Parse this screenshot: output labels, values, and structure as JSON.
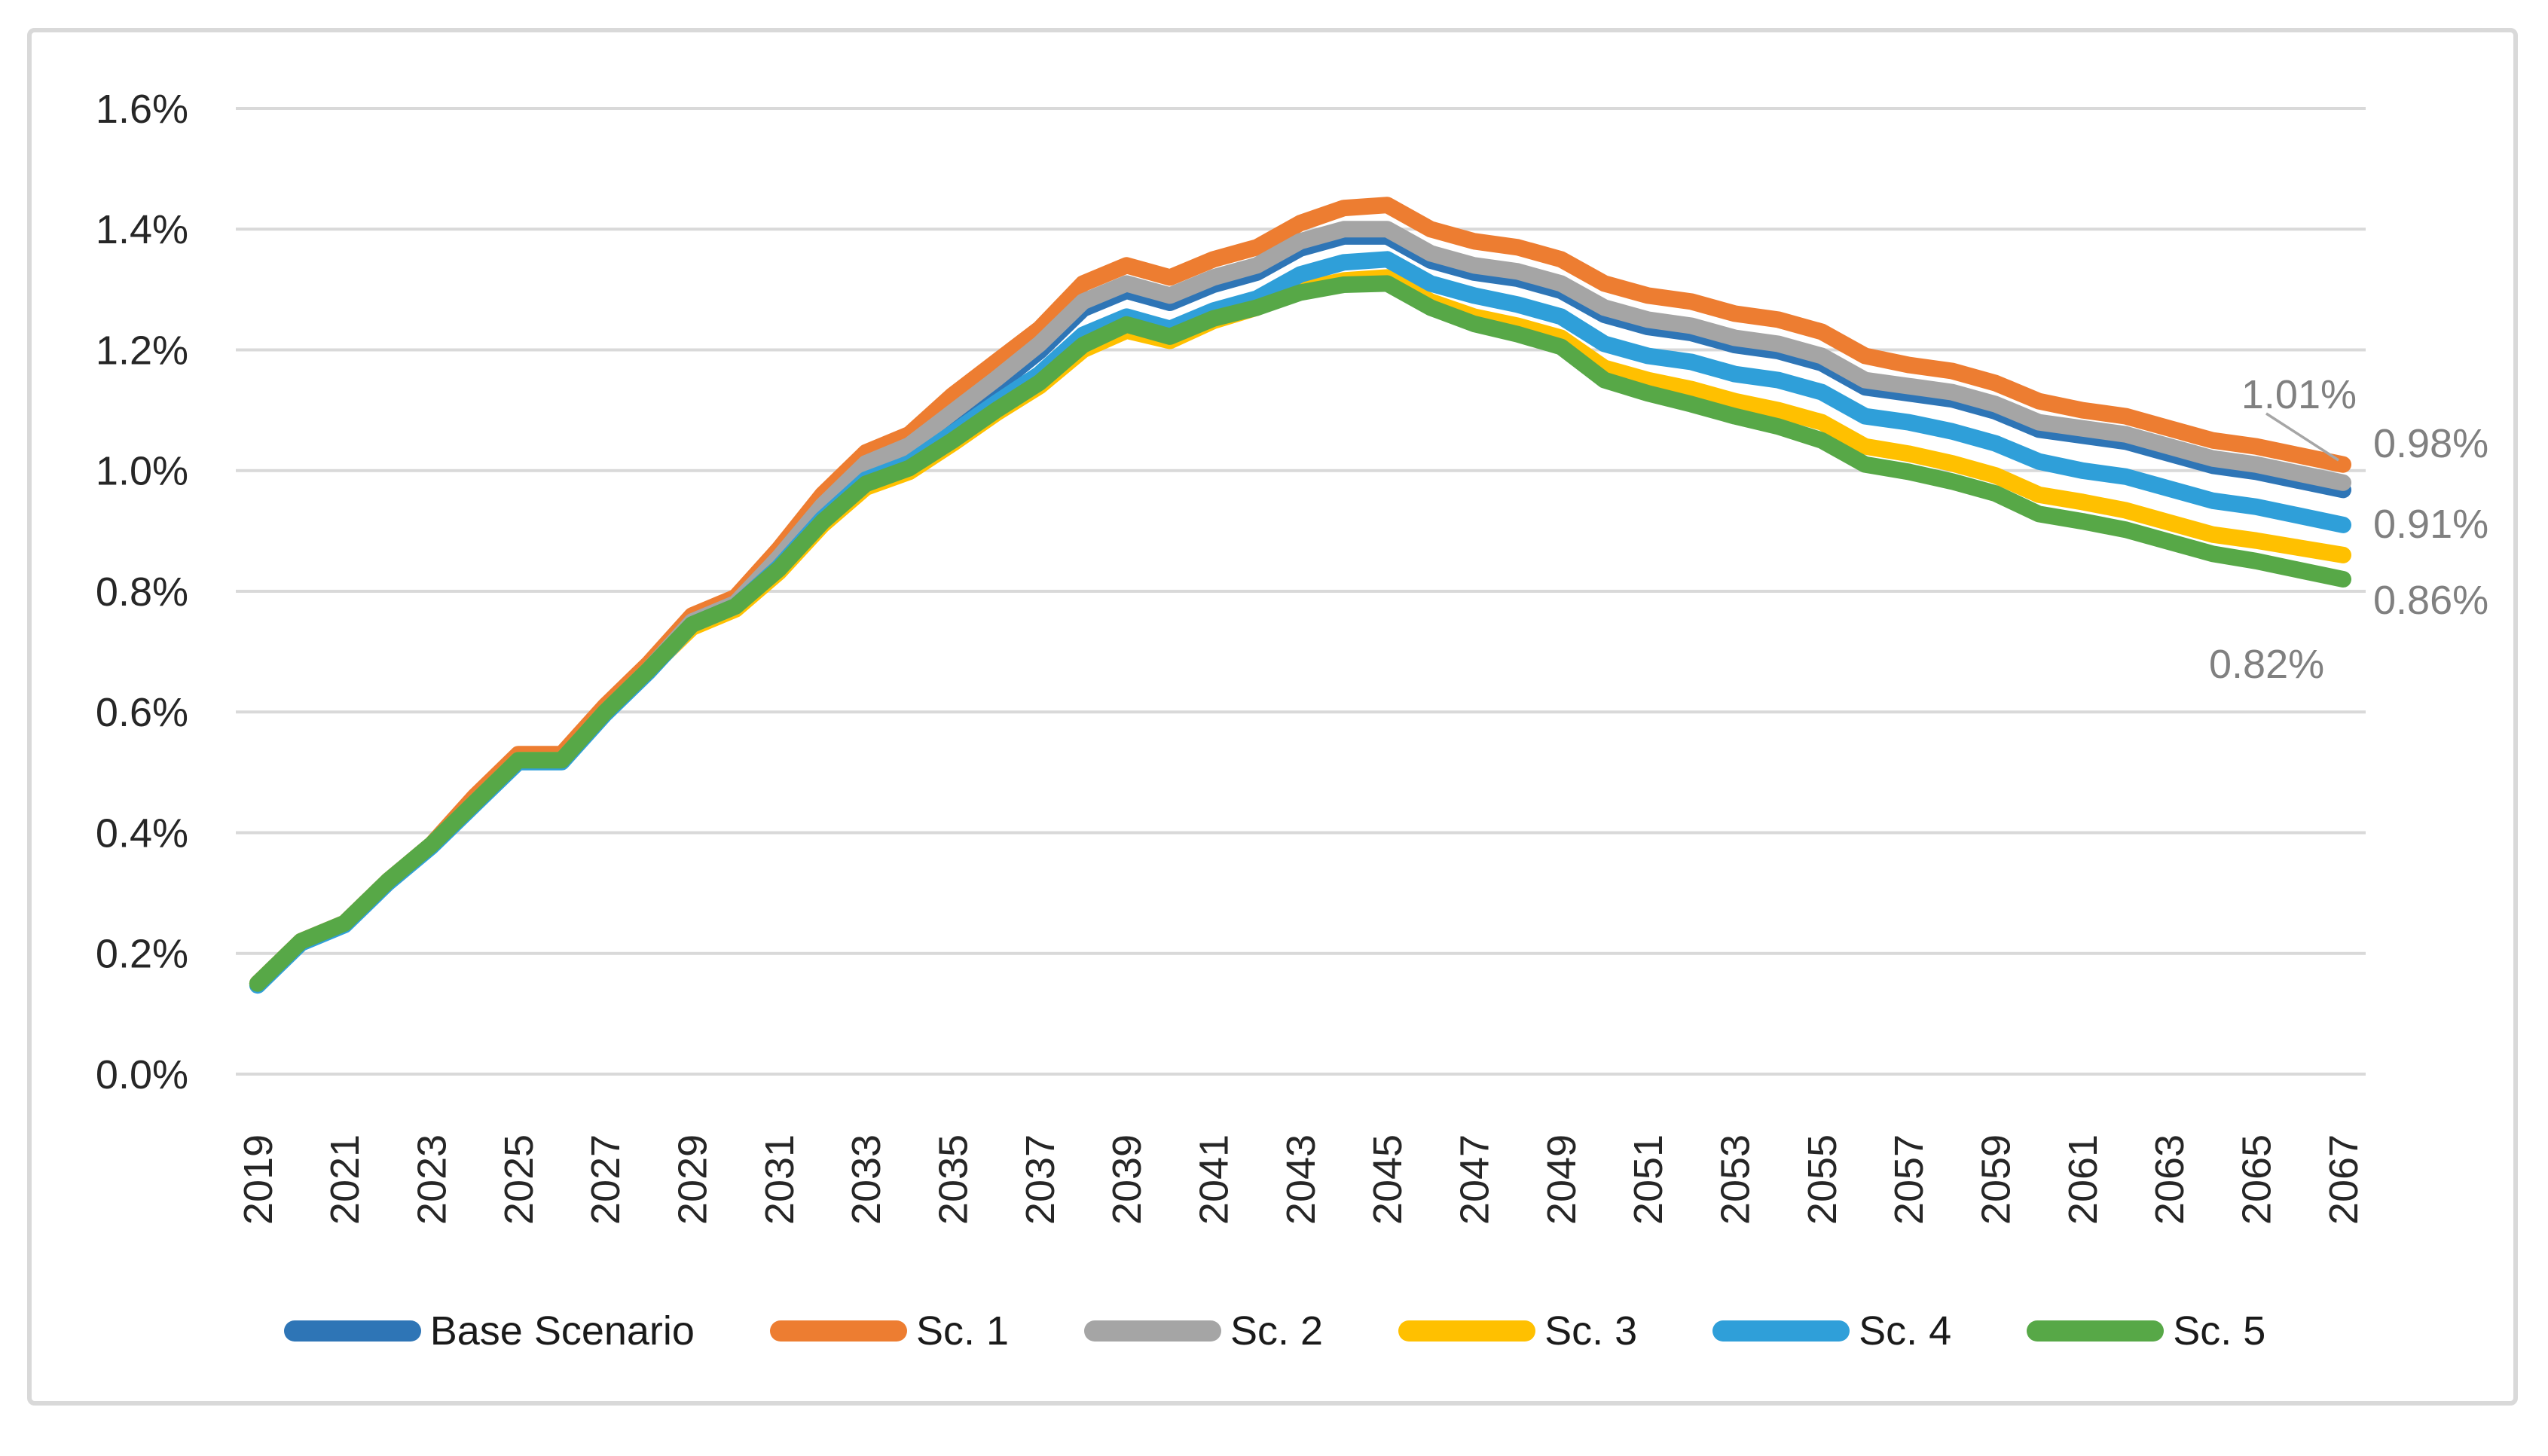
{
  "chart_data": {
    "type": "line",
    "title": "",
    "x_years": [
      2019,
      2020,
      2021,
      2022,
      2023,
      2024,
      2025,
      2026,
      2027,
      2028,
      2029,
      2030,
      2031,
      2032,
      2033,
      2034,
      2035,
      2036,
      2037,
      2038,
      2039,
      2040,
      2041,
      2042,
      2043,
      2044,
      2045,
      2046,
      2047,
      2048,
      2049,
      2050,
      2051,
      2052,
      2053,
      2054,
      2055,
      2056,
      2057,
      2058,
      2059,
      2060,
      2061,
      2062,
      2063,
      2064,
      2065,
      2066,
      2067
    ],
    "x_tick_labels": [
      "2019",
      "2021",
      "2023",
      "2025",
      "2027",
      "2029",
      "2031",
      "2033",
      "2035",
      "2037",
      "2039",
      "2041",
      "2043",
      "2045",
      "2047",
      "2049",
      "2051",
      "2053",
      "2055",
      "2057",
      "2059",
      "2061",
      "2063",
      "2065",
      "2067"
    ],
    "y_axis": {
      "min": 0.0,
      "max": 1.6,
      "tick_step": 0.2,
      "tick_labels": [
        "0.0%",
        "0.2%",
        "0.4%",
        "0.6%",
        "0.8%",
        "1.0%",
        "1.2%",
        "1.4%",
        "1.6%"
      ],
      "grid": true
    },
    "legend_position": "bottom",
    "series": [
      {
        "name": "Base Scenario",
        "color": "#2E75B6",
        "values": [
          0.15,
          0.22,
          0.25,
          0.32,
          0.38,
          0.45,
          0.52,
          0.52,
          0.6,
          0.67,
          0.75,
          0.78,
          0.844,
          0.93,
          1.0,
          1.03,
          1.085,
          1.14,
          1.198,
          1.268,
          1.298,
          1.278,
          1.308,
          1.328,
          1.368,
          1.388,
          1.388,
          1.348,
          1.328,
          1.318,
          1.298,
          1.258,
          1.238,
          1.228,
          1.208,
          1.198,
          1.178,
          1.138,
          1.128,
          1.118,
          1.098,
          1.068,
          1.058,
          1.048,
          1.028,
          1.008,
          0.998,
          0.983,
          0.968
        ]
      },
      {
        "name": "Sc. 1",
        "color": "#ED7D31",
        "values": [
          0.15,
          0.22,
          0.25,
          0.32,
          0.38,
          0.46,
          0.53,
          0.53,
          0.61,
          0.68,
          0.76,
          0.79,
          0.87,
          0.96,
          1.03,
          1.06,
          1.125,
          1.18,
          1.235,
          1.31,
          1.34,
          1.32,
          1.35,
          1.37,
          1.41,
          1.435,
          1.44,
          1.4,
          1.38,
          1.37,
          1.35,
          1.31,
          1.29,
          1.28,
          1.26,
          1.25,
          1.23,
          1.19,
          1.175,
          1.165,
          1.145,
          1.115,
          1.1,
          1.09,
          1.07,
          1.05,
          1.04,
          1.025,
          1.01
        ]
      },
      {
        "name": "Sc. 2",
        "color": "#A5A5A5",
        "values": [
          0.15,
          0.22,
          0.25,
          0.32,
          0.38,
          0.45,
          0.52,
          0.52,
          0.6,
          0.67,
          0.75,
          0.78,
          0.856,
          0.942,
          1.012,
          1.042,
          1.097,
          1.152,
          1.21,
          1.28,
          1.31,
          1.29,
          1.32,
          1.34,
          1.38,
          1.4,
          1.4,
          1.36,
          1.34,
          1.33,
          1.31,
          1.27,
          1.25,
          1.24,
          1.22,
          1.21,
          1.19,
          1.15,
          1.14,
          1.13,
          1.11,
          1.08,
          1.07,
          1.06,
          1.04,
          1.02,
          1.01,
          0.995,
          0.98
        ]
      },
      {
        "name": "Sc. 3",
        "color": "#FFC000",
        "values": [
          0.15,
          0.22,
          0.25,
          0.32,
          0.38,
          0.45,
          0.52,
          0.52,
          0.6,
          0.67,
          0.74,
          0.77,
          0.832,
          0.91,
          0.972,
          0.998,
          1.045,
          1.095,
          1.14,
          1.2,
          1.232,
          1.215,
          1.248,
          1.27,
          1.3,
          1.315,
          1.32,
          1.28,
          1.255,
          1.24,
          1.22,
          1.17,
          1.15,
          1.135,
          1.115,
          1.1,
          1.08,
          1.04,
          1.028,
          1.012,
          0.992,
          0.96,
          0.948,
          0.934,
          0.914,
          0.894,
          0.884,
          0.872,
          0.86
        ]
      },
      {
        "name": "Sc. 4",
        "color": "#2F9FD9",
        "values": [
          0.147,
          0.217,
          0.247,
          0.317,
          0.377,
          0.447,
          0.517,
          0.517,
          0.597,
          0.667,
          0.745,
          0.775,
          0.84,
          0.92,
          0.985,
          1.012,
          1.062,
          1.112,
          1.16,
          1.225,
          1.255,
          1.235,
          1.265,
          1.285,
          1.325,
          1.345,
          1.35,
          1.31,
          1.29,
          1.275,
          1.255,
          1.21,
          1.19,
          1.18,
          1.16,
          1.15,
          1.13,
          1.09,
          1.08,
          1.065,
          1.045,
          1.015,
          1.0,
          0.99,
          0.97,
          0.95,
          0.94,
          0.925,
          0.91
        ]
      },
      {
        "name": "Sc. 5",
        "color": "#57A847",
        "values": [
          0.15,
          0.22,
          0.25,
          0.32,
          0.38,
          0.45,
          0.52,
          0.52,
          0.6,
          0.67,
          0.745,
          0.775,
          0.837,
          0.915,
          0.978,
          1.004,
          1.05,
          1.1,
          1.146,
          1.208,
          1.242,
          1.222,
          1.252,
          1.27,
          1.295,
          1.308,
          1.31,
          1.27,
          1.243,
          1.226,
          1.205,
          1.15,
          1.128,
          1.11,
          1.09,
          1.073,
          1.05,
          1.01,
          0.998,
          0.982,
          0.962,
          0.928,
          0.916,
          0.902,
          0.882,
          0.862,
          0.85,
          0.835,
          0.82
        ]
      }
    ],
    "end_labels": [
      {
        "text": "1.01%",
        "series": "Sc. 1",
        "has_leader_line": true
      },
      {
        "text": "0.98%",
        "series": "Sc. 2",
        "has_leader_line": false
      },
      {
        "text": "0.91%",
        "series": "Sc. 4",
        "has_leader_line": false
      },
      {
        "text": "0.86%",
        "series": "Sc. 3",
        "has_leader_line": false
      },
      {
        "text": "0.82%",
        "series": "Sc. 5",
        "has_leader_line": false
      }
    ],
    "colors": {
      "grid": "#D9D9D9",
      "frame_border": "#D9D9D9",
      "axis_text": "#262626",
      "data_label_text": "#808080",
      "leader_line": "#A6A6A6",
      "legend_text": "#1a1a1a"
    }
  }
}
